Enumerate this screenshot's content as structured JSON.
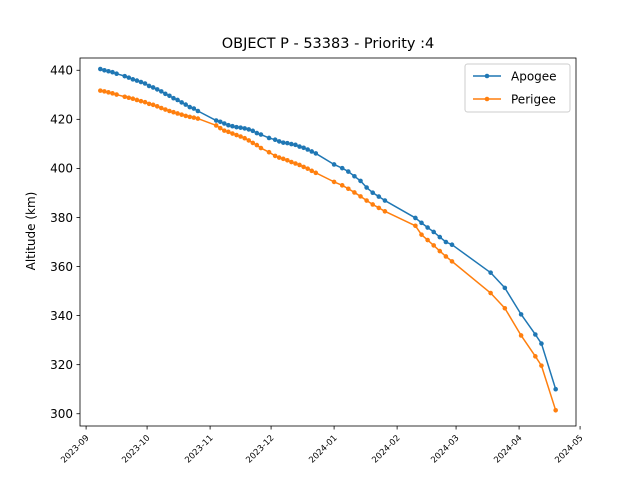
{
  "chart_data": {
    "type": "line",
    "title": "OBJECT P - 53383 - Priority :4",
    "xlabel": "",
    "ylabel": "Altitude (km)",
    "xlim": [
      "2023-08-29",
      "2024-04-29"
    ],
    "ylim": [
      295,
      445
    ],
    "legend": {
      "position": "top-right"
    },
    "grid": false,
    "xticks": [
      "2023-09",
      "2023-10",
      "2023-11",
      "2023-12",
      "2024-01",
      "2024-02",
      "2024-03",
      "2024-04",
      "2024-05"
    ],
    "yticks": [
      300,
      320,
      340,
      360,
      380,
      400,
      420,
      440
    ],
    "series": [
      {
        "name": "Apogee",
        "color": "#1f77b4",
        "x": [
          "2023-09-08",
          "2023-09-10",
          "2023-09-12",
          "2023-09-14",
          "2023-09-16",
          "2023-09-20",
          "2023-09-22",
          "2023-09-24",
          "2023-09-26",
          "2023-09-28",
          "2023-09-30",
          "2023-10-02",
          "2023-10-04",
          "2023-10-06",
          "2023-10-08",
          "2023-10-10",
          "2023-10-12",
          "2023-10-14",
          "2023-10-16",
          "2023-10-18",
          "2023-10-20",
          "2023-10-22",
          "2023-10-24",
          "2023-10-26",
          "2023-11-04",
          "2023-11-06",
          "2023-11-08",
          "2023-11-10",
          "2023-11-12",
          "2023-11-14",
          "2023-11-16",
          "2023-11-18",
          "2023-11-20",
          "2023-11-22",
          "2023-11-24",
          "2023-11-26",
          "2023-11-30",
          "2023-12-03",
          "2023-12-05",
          "2023-12-07",
          "2023-12-09",
          "2023-12-11",
          "2023-12-13",
          "2023-12-15",
          "2023-12-17",
          "2023-12-19",
          "2023-12-21",
          "2023-12-23",
          "2024-01-01",
          "2024-01-05",
          "2024-01-08",
          "2024-01-11",
          "2024-01-14",
          "2024-01-17",
          "2024-01-20",
          "2024-01-23",
          "2024-01-26",
          "2024-02-10",
          "2024-02-13",
          "2024-02-16",
          "2024-02-19",
          "2024-02-22",
          "2024-02-25",
          "2024-02-28",
          "2024-03-18",
          "2024-03-25",
          "2024-04-02",
          "2024-04-09",
          "2024-04-12",
          "2024-04-19"
        ],
        "values": [
          440.5,
          440.0,
          439.6,
          439.2,
          438.6,
          437.6,
          437.0,
          436.3,
          435.8,
          435.2,
          434.6,
          433.6,
          433.0,
          432.2,
          431.4,
          430.4,
          429.6,
          428.6,
          427.9,
          426.9,
          426.0,
          425.0,
          424.4,
          423.4,
          419.5,
          419.0,
          418.3,
          417.6,
          417.2,
          416.8,
          416.6,
          416.3,
          415.9,
          415.3,
          414.4,
          413.8,
          412.4,
          411.7,
          411.0,
          410.5,
          410.3,
          409.9,
          409.6,
          408.9,
          408.4,
          407.7,
          406.9,
          406.1,
          401.6,
          400.1,
          398.7,
          396.8,
          394.9,
          392.2,
          390.1,
          388.5,
          386.9,
          379.8,
          377.8,
          375.9,
          374.1,
          372.0,
          370.0,
          368.9,
          357.5,
          351.3,
          340.5,
          332.3,
          328.6,
          310.0
        ]
      },
      {
        "name": "Perigee",
        "color": "#ff7f0e",
        "x": [
          "2023-09-08",
          "2023-09-10",
          "2023-09-12",
          "2023-09-14",
          "2023-09-16",
          "2023-09-20",
          "2023-09-22",
          "2023-09-24",
          "2023-09-26",
          "2023-09-28",
          "2023-09-30",
          "2023-10-02",
          "2023-10-04",
          "2023-10-06",
          "2023-10-08",
          "2023-10-10",
          "2023-10-12",
          "2023-10-14",
          "2023-10-16",
          "2023-10-18",
          "2023-10-20",
          "2023-10-22",
          "2023-10-24",
          "2023-10-26",
          "2023-11-04",
          "2023-11-06",
          "2023-11-08",
          "2023-11-10",
          "2023-11-12",
          "2023-11-14",
          "2023-11-16",
          "2023-11-18",
          "2023-11-20",
          "2023-11-22",
          "2023-11-24",
          "2023-11-26",
          "2023-11-30",
          "2023-12-03",
          "2023-12-05",
          "2023-12-07",
          "2023-12-09",
          "2023-12-11",
          "2023-12-13",
          "2023-12-15",
          "2023-12-17",
          "2023-12-19",
          "2023-12-21",
          "2023-12-23",
          "2024-01-01",
          "2024-01-05",
          "2024-01-08",
          "2024-01-11",
          "2024-01-14",
          "2024-01-17",
          "2024-01-20",
          "2024-01-23",
          "2024-01-26",
          "2024-02-10",
          "2024-02-13",
          "2024-02-16",
          "2024-02-19",
          "2024-02-22",
          "2024-02-25",
          "2024-02-28",
          "2024-03-18",
          "2024-03-25",
          "2024-04-02",
          "2024-04-09",
          "2024-04-12",
          "2024-04-19"
        ],
        "values": [
          431.7,
          431.4,
          431.0,
          430.6,
          430.1,
          429.2,
          428.8,
          428.4,
          427.9,
          427.4,
          427.0,
          426.3,
          425.9,
          425.3,
          424.6,
          424.0,
          423.4,
          422.9,
          422.4,
          421.9,
          421.4,
          421.0,
          420.7,
          420.3,
          417.5,
          416.4,
          415.4,
          414.9,
          414.2,
          413.6,
          413.0,
          412.3,
          411.4,
          410.4,
          409.5,
          408.3,
          406.6,
          405.1,
          404.4,
          403.9,
          403.3,
          402.6,
          402.0,
          401.4,
          400.6,
          399.9,
          399.0,
          398.2,
          394.5,
          393.1,
          391.7,
          390.2,
          388.6,
          386.9,
          385.3,
          383.9,
          382.5,
          376.6,
          373.0,
          370.8,
          368.6,
          366.3,
          364.1,
          362.1,
          349.2,
          343.0,
          331.9,
          323.4,
          319.6,
          301.4
        ]
      }
    ]
  }
}
